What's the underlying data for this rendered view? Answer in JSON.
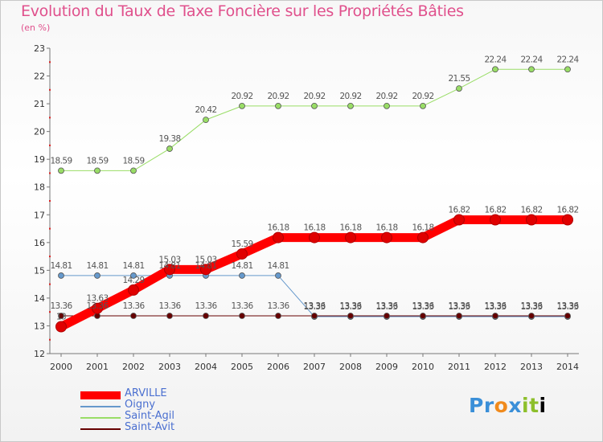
{
  "title": "Evolution du Taux de Taxe Foncière sur les Propriétés Bâties",
  "unit": "(en %)",
  "logo": {
    "text": "Proxiti",
    "letters": [
      "P",
      "r",
      "o",
      "x",
      "i",
      "t",
      "i"
    ]
  },
  "chart_data": {
    "type": "line",
    "title": "Evolution du Taux de Taxe Foncière sur les Propriétés Bâties",
    "ylabel": "(en %)",
    "xlabel": "",
    "ylim": [
      12,
      23
    ],
    "yticks": [
      12,
      13,
      14,
      15,
      16,
      17,
      18,
      19,
      20,
      21,
      22,
      23
    ],
    "x": [
      2000,
      2001,
      2002,
      2003,
      2004,
      2005,
      2006,
      2007,
      2008,
      2009,
      2010,
      2011,
      2012,
      2013,
      2014
    ],
    "grid": false,
    "legend_position": "bottom-left",
    "series": [
      {
        "name": "ARVILLE",
        "color": "#ff0000",
        "line_width": 11,
        "values": [
          12.97,
          13.63,
          14.29,
          15.03,
          15.03,
          15.59,
          16.18,
          16.18,
          16.18,
          16.18,
          16.18,
          16.82,
          16.82,
          16.82,
          16.82
        ],
        "labels": [
          "13",
          "13.63",
          "14.29",
          "15.03",
          "15.03",
          "15.59",
          "16.18",
          "16.18",
          "16.18",
          "16.18",
          "16.18",
          "16.82",
          "16.82",
          "16.82",
          "16.82"
        ]
      },
      {
        "name": "Oigny",
        "color": "#6699cc",
        "line_width": 1,
        "values": [
          14.81,
          14.81,
          14.81,
          14.81,
          14.81,
          14.81,
          14.81,
          13.33,
          13.33,
          13.33,
          13.33,
          13.33,
          13.33,
          13.33,
          13.33
        ],
        "labels": [
          "14.81",
          "14.81",
          "14.81",
          "14.81",
          "14.81",
          "14.81",
          "14.81",
          "13.33",
          "13.33",
          "13.33",
          "13.33",
          "13.33",
          "13.33",
          "13.33",
          "13.33"
        ]
      },
      {
        "name": "Saint-Agil",
        "color": "#99dd66",
        "line_width": 1,
        "values": [
          18.59,
          18.59,
          18.59,
          19.38,
          20.42,
          20.92,
          20.92,
          20.92,
          20.92,
          20.92,
          20.92,
          21.55,
          22.24,
          22.24,
          22.24
        ],
        "labels": [
          "18.59",
          "18.59",
          "18.59",
          "19.38",
          "20.42",
          "20.92",
          "20.92",
          "20.92",
          "20.92",
          "20.92",
          "20.92",
          "21.55",
          "22.24",
          "22.24",
          "22.24"
        ]
      },
      {
        "name": "Saint-Avit",
        "color": "#660000",
        "line_width": 1,
        "values": [
          13.36,
          13.36,
          13.36,
          13.36,
          13.36,
          13.36,
          13.36,
          13.36,
          13.36,
          13.36,
          13.36,
          13.36,
          13.36,
          13.36,
          13.36
        ],
        "labels": [
          "13.36",
          "13.36",
          "13.36",
          "13.36",
          "13.36",
          "13.36",
          "13.36",
          "13.36",
          "13.36",
          "13.36",
          "13.36",
          "13.36",
          "13.36",
          "13.36",
          "13.36"
        ]
      }
    ]
  }
}
